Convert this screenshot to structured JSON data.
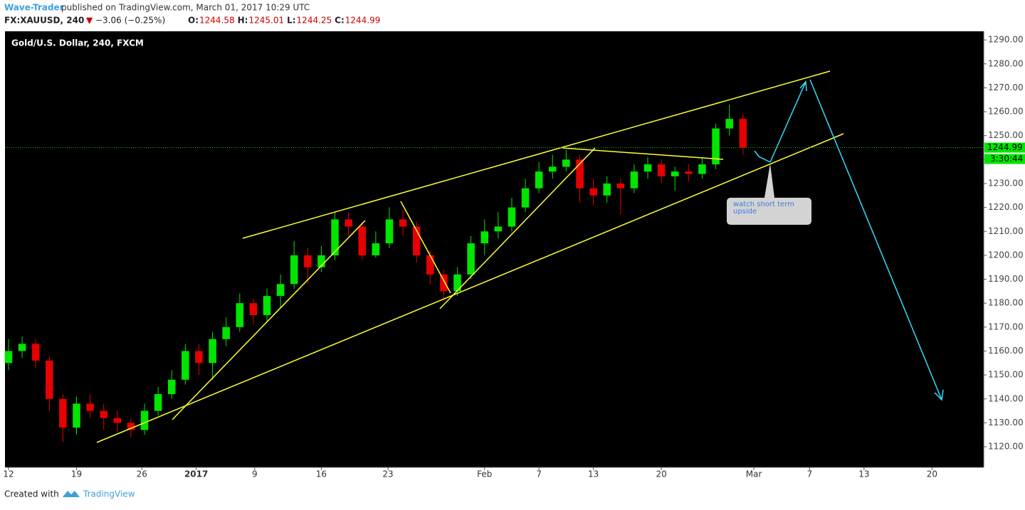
{
  "header": {
    "author": "Wave-Trader",
    "published": "published on TradingView.com, March 01, 2017 10:29 UTC",
    "symbol": "FX:XAUUSD, 240",
    "arrow": "▼",
    "change": "−3.06 (−0.25%)",
    "ohlc": [
      {
        "label": "O:",
        "value": "1244.58"
      },
      {
        "label": "H:",
        "value": "1245.01"
      },
      {
        "label": "L:",
        "value": "1244.25"
      },
      {
        "label": "C:",
        "value": "1244.99"
      }
    ]
  },
  "chart_data": {
    "type": "candlestick",
    "title": "Gold/U.S. Dollar, 240, FXCM",
    "x": [
      0,
      1,
      2,
      3,
      4,
      5,
      6,
      7,
      8,
      9,
      10,
      11,
      12,
      13,
      14,
      15,
      16,
      17,
      18,
      19,
      20,
      21,
      22,
      23,
      24,
      25,
      26,
      27,
      28,
      29,
      30,
      31,
      32,
      33,
      34,
      35,
      36,
      37,
      38,
      39,
      40,
      41,
      42,
      43,
      44,
      45,
      46,
      47,
      48,
      49,
      50,
      51,
      52,
      53,
      54
    ],
    "open": [
      1155,
      1160,
      1163,
      1156,
      1140,
      1128,
      1138,
      1135,
      1132,
      1130,
      1127,
      1135,
      1142,
      1148,
      1160,
      1155,
      1165,
      1170,
      1180,
      1175,
      1183,
      1188,
      1200,
      1195,
      1200,
      1215,
      1212,
      1200,
      1205,
      1215,
      1212,
      1200,
      1192,
      1185,
      1192,
      1205,
      1210,
      1212,
      1220,
      1228,
      1235,
      1237,
      1240,
      1228,
      1225,
      1230,
      1228,
      1235,
      1238,
      1233,
      1235,
      1234,
      1238,
      1253,
      1257
    ],
    "high": [
      1165,
      1166,
      1165,
      1158,
      1142,
      1141,
      1142,
      1138,
      1135,
      1132,
      1138,
      1145,
      1152,
      1163,
      1163,
      1168,
      1174,
      1184,
      1182,
      1186,
      1192,
      1206,
      1203,
      1204,
      1218,
      1218,
      1214,
      1210,
      1220,
      1219,
      1214,
      1202,
      1194,
      1195,
      1208,
      1215,
      1218,
      1224,
      1232,
      1239,
      1242,
      1244,
      1242,
      1232,
      1233,
      1232,
      1238,
      1241,
      1240,
      1237,
      1238,
      1241,
      1255,
      1263,
      1259
    ],
    "low": [
      1152,
      1157,
      1153,
      1135,
      1122,
      1125,
      1132,
      1127,
      1126,
      1124,
      1125,
      1133,
      1140,
      1146,
      1150,
      1148,
      1162,
      1168,
      1171,
      1172,
      1178,
      1186,
      1188,
      1193,
      1198,
      1208,
      1198,
      1199,
      1203,
      1208,
      1197,
      1188,
      1181,
      1183,
      1190,
      1200,
      1207,
      1210,
      1218,
      1226,
      1232,
      1235,
      1222,
      1221,
      1222,
      1217,
      1226,
      1232,
      1230,
      1227,
      1231,
      1232,
      1236,
      1250,
      1242
    ],
    "close": [
      1160,
      1163,
      1156,
      1140,
      1128,
      1138,
      1135,
      1132,
      1130,
      1127,
      1135,
      1142,
      1148,
      1160,
      1155,
      1165,
      1170,
      1180,
      1175,
      1183,
      1188,
      1200,
      1195,
      1200,
      1215,
      1212,
      1200,
      1205,
      1215,
      1212,
      1200,
      1192,
      1185,
      1192,
      1205,
      1210,
      1212,
      1220,
      1228,
      1235,
      1237,
      1240,
      1228,
      1225,
      1230,
      1228,
      1235,
      1238,
      1233,
      1235,
      1234,
      1238,
      1253,
      1257,
      1245
    ],
    "up_color": "#00e600",
    "down_color": "#e60000",
    "xlim": [
      -0.26,
      71.7
    ],
    "xticks": [
      {
        "value": 0,
        "label": "12"
      },
      {
        "value": 5,
        "label": "19"
      },
      {
        "value": 9.8,
        "label": "26"
      },
      {
        "value": 13.8,
        "label": "2017"
      },
      {
        "value": 18.1,
        "label": "9"
      },
      {
        "value": 23,
        "label": "16"
      },
      {
        "value": 27.9,
        "label": "23"
      },
      {
        "value": 35,
        "label": "Feb"
      },
      {
        "value": 39,
        "label": "7"
      },
      {
        "value": 43,
        "label": "13"
      },
      {
        "value": 48,
        "label": "20"
      },
      {
        "value": 54.8,
        "label": "Mar"
      },
      {
        "value": 58.9,
        "label": "7"
      },
      {
        "value": 62.9,
        "label": "13"
      },
      {
        "value": 67.9,
        "label": "20"
      }
    ],
    "ylim": [
      1111.4,
      1293.6
    ],
    "yticks": [
      {
        "value": 1120,
        "label": "1120.00"
      },
      {
        "value": 1130,
        "label": "1130.00"
      },
      {
        "value": 1140,
        "label": "1140.00"
      },
      {
        "value": 1150,
        "label": "1150.00"
      },
      {
        "value": 1160,
        "label": "1160.00"
      },
      {
        "value": 1170,
        "label": "1170.00"
      },
      {
        "value": 1180,
        "label": "1180.00"
      },
      {
        "value": 1190,
        "label": "1190.00"
      },
      {
        "value": 1200,
        "label": "1200.00"
      },
      {
        "value": 1210,
        "label": "1210.00"
      },
      {
        "value": 1220,
        "label": "1220.00"
      },
      {
        "value": 1230,
        "label": "1230.00"
      },
      {
        "value": 1240,
        "label": "1240.00"
      },
      {
        "value": 1250,
        "label": "1250.00"
      },
      {
        "value": 1260,
        "label": "1260.00"
      },
      {
        "value": 1270,
        "label": "1270.00"
      },
      {
        "value": 1280,
        "label": "1280.00"
      },
      {
        "value": 1290,
        "label": "1290.00"
      }
    ],
    "last_price": 1244.99,
    "countdown": "3:30:44",
    "annotation": "watch short term upside"
  },
  "footer": {
    "created": "Created with",
    "brand": "TradingView"
  }
}
